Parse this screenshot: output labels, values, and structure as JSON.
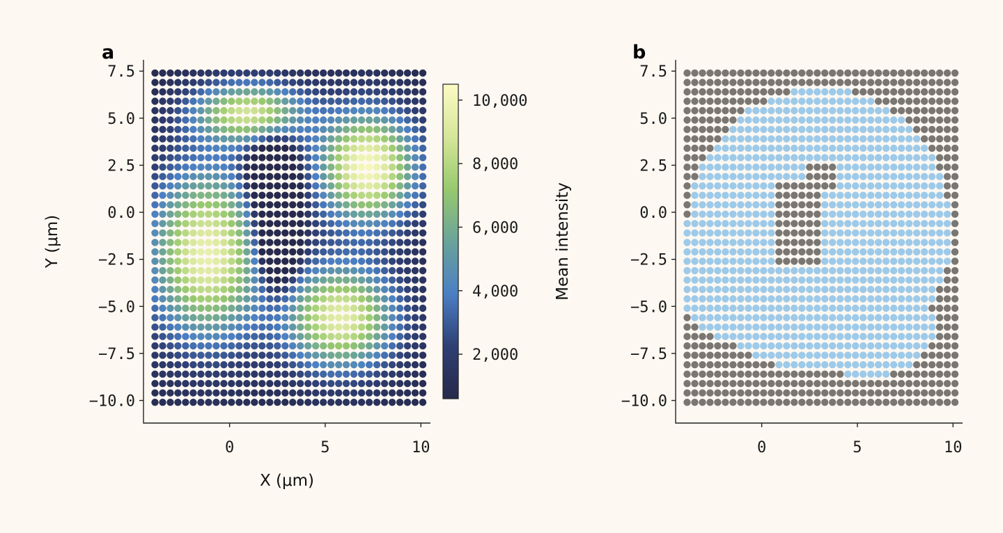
{
  "chart_data": [
    {
      "panel": "a",
      "type": "scatter",
      "title": "",
      "xlabel": "X (μm)",
      "ylabel": "Y (μm)",
      "xlim": [
        -4.5,
        10.5
      ],
      "ylim": [
        -11.2,
        8.1
      ],
      "xticks": [
        0,
        5,
        10
      ],
      "xtick_labels": [
        "0",
        "5",
        "10"
      ],
      "yticks": [
        7.5,
        5.0,
        2.5,
        0.0,
        -2.5,
        -5.0,
        -7.5,
        -10.0
      ],
      "ytick_labels": [
        "7.5",
        "5.0",
        "2.5",
        "0.0",
        "−2.5",
        "−5.0",
        "−7.5",
        "−10.0"
      ],
      "grid": false,
      "spot_grid": {
        "x_start": -3.9,
        "x_step": 0.4,
        "nx": 36,
        "y_start": 7.4,
        "y_step": -0.5,
        "ny": 36
      },
      "colorbar": {
        "label": "Mean intensity",
        "range": [
          600,
          10500
        ],
        "ticks": [
          2000,
          4000,
          6000,
          8000,
          10000
        ],
        "tick_labels": [
          "2,000",
          "4,000",
          "6,000",
          "8,000",
          "10,000"
        ],
        "colormap": [
          "#26294a",
          "#2f3f74",
          "#4b7fc4",
          "#6aa39a",
          "#98c96e",
          "#d6e69a",
          "#fcfbc4"
        ]
      }
    },
    {
      "panel": "b",
      "type": "scatter",
      "title": "",
      "xlabel": "",
      "ylabel": "",
      "xlim": [
        -4.5,
        10.5
      ],
      "ylim": [
        -11.2,
        8.1
      ],
      "xticks": [
        0,
        5,
        10
      ],
      "xtick_labels": [
        "0",
        "5",
        "10"
      ],
      "yticks": [
        7.5,
        5.0,
        2.5,
        0.0,
        -2.5,
        -5.0,
        -7.5,
        -10.0
      ],
      "ytick_labels": [
        "7.5",
        "5.0",
        "2.5",
        "0.0",
        "−2.5",
        "−5.0",
        "−7.5",
        "−10.0"
      ],
      "grid": false,
      "spot_grid": {
        "x_start": -3.9,
        "x_step": 0.4,
        "nx": 36,
        "y_start": 7.4,
        "y_step": -0.5,
        "ny": 36
      },
      "category_colors": {
        "tissue": "#9ecae9",
        "background": "#7a7672"
      }
    }
  ]
}
